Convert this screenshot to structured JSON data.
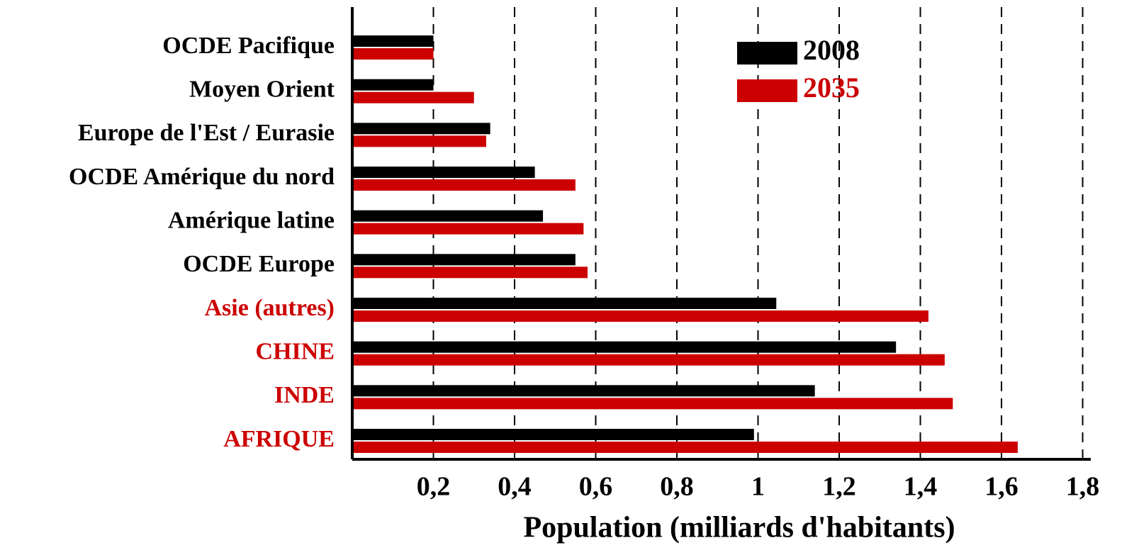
{
  "chart_data": {
    "type": "hbar",
    "categories": [
      "OCDE Pacifique",
      "Moyen Orient",
      "Europe de l'Est / Eurasie",
      "OCDE Amérique du nord",
      "Amérique latine",
      "OCDE  Europe",
      "Asie (autres)",
      "CHINE",
      "INDE",
      "AFRIQUE"
    ],
    "category_colors": [
      "#000000",
      "#000000",
      "#000000",
      "#000000",
      "#000000",
      "#000000",
      "#cc0000",
      "#cc0000",
      "#cc0000",
      "#cc0000"
    ],
    "series": [
      {
        "name": "2008",
        "color": "#000000",
        "values": [
          0.2,
          0.2,
          0.34,
          0.45,
          0.47,
          0.55,
          1.045,
          1.34,
          1.14,
          0.99
        ]
      },
      {
        "name": "2035",
        "color": "#cc0000",
        "values": [
          0.2,
          0.3,
          0.33,
          0.55,
          0.57,
          0.58,
          1.42,
          1.46,
          1.48,
          1.64
        ]
      }
    ],
    "xlabel": "Population (milliards d'habitants)",
    "xlim": [
      0,
      1.82
    ],
    "xticks": [
      {
        "value": 0.2,
        "label": "0,2"
      },
      {
        "value": 0.4,
        "label": "0,4"
      },
      {
        "value": 0.6,
        "label": "0,6"
      },
      {
        "value": 0.8,
        "label": "0,8"
      },
      1,
      {
        "value": 1.2,
        "label": "1,2"
      },
      {
        "value": 1.4,
        "label": "1,4"
      },
      {
        "value": 1.6,
        "label": "1,6"
      },
      {
        "value": 1.8,
        "label": "1,8"
      }
    ],
    "grid": true,
    "legend": "top-right"
  }
}
